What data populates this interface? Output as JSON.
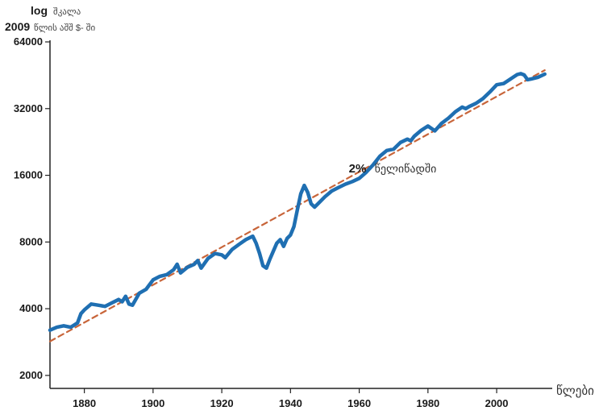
{
  "chart_data": {
    "type": "line",
    "title": "",
    "ylabel_line1_bold": "log",
    "ylabel_line1_text": "შკალა",
    "ylabel_line2_bold": "2009",
    "ylabel_line2_text": "წლის აშშ $- ში",
    "xlabel": "წლები",
    "yscale": "log",
    "xlim": [
      1870,
      2015
    ],
    "ylim": [
      1900,
      64000
    ],
    "yticks": [
      2000,
      4000,
      8000,
      16000,
      32000,
      64000
    ],
    "ytick_labels": [
      "2000",
      "4000",
      "8000",
      "16000",
      "32000",
      "64000"
    ],
    "xticks": [
      1880,
      1900,
      1920,
      1940,
      1960,
      1980,
      2000
    ],
    "xtick_labels": [
      "1880",
      "1900",
      "1920",
      "1940",
      "1960",
      "1980",
      "2000"
    ],
    "grid": false,
    "annotation": {
      "value": "2%",
      "text": "წელიწადში",
      "x": 1964,
      "y": 16500
    },
    "series": [
      {
        "style": "solid",
        "color": "#1f6fb2",
        "x": [
          1870,
          1872,
          1874,
          1876,
          1878,
          1879,
          1880,
          1882,
          1884,
          1886,
          1888,
          1890,
          1891,
          1892,
          1893,
          1894,
          1896,
          1898,
          1900,
          1902,
          1904,
          1906,
          1907,
          1908,
          1910,
          1912,
          1913,
          1914,
          1916,
          1918,
          1920,
          1921,
          1923,
          1925,
          1927,
          1929,
          1930,
          1931,
          1932,
          1933,
          1934,
          1936,
          1937,
          1938,
          1939,
          1940,
          1941,
          1942,
          1943,
          1944,
          1945,
          1946,
          1947,
          1948,
          1950,
          1952,
          1954,
          1956,
          1958,
          1960,
          1962,
          1964,
          1966,
          1968,
          1970,
          1972,
          1974,
          1975,
          1976,
          1978,
          1980,
          1982,
          1984,
          1986,
          1988,
          1990,
          1991,
          1992,
          1994,
          1996,
          1998,
          2000,
          2002,
          2004,
          2006,
          2007,
          2008,
          2009,
          2010,
          2012,
          2014
        ],
        "values": [
          3200,
          3300,
          3350,
          3300,
          3450,
          3800,
          3950,
          4200,
          4150,
          4100,
          4250,
          4400,
          4300,
          4550,
          4200,
          4150,
          4700,
          4900,
          5400,
          5600,
          5700,
          6000,
          6350,
          5800,
          6150,
          6350,
          6600,
          6100,
          6750,
          7100,
          7000,
          6800,
          7400,
          7800,
          8200,
          8500,
          7900,
          7100,
          6250,
          6100,
          6700,
          7900,
          8200,
          7650,
          8300,
          8600,
          9400,
          11200,
          13200,
          14400,
          13400,
          11900,
          11500,
          11900,
          12800,
          13600,
          14100,
          14600,
          15000,
          15500,
          16500,
          17800,
          19500,
          20700,
          21000,
          22500,
          23300,
          22900,
          24000,
          25500,
          26700,
          25400,
          27500,
          29000,
          31000,
          32500,
          32000,
          32700,
          33800,
          35500,
          38000,
          41000,
          41500,
          43500,
          45600,
          46000,
          45400,
          43200,
          43500,
          44300,
          45800
        ]
      },
      {
        "style": "dashed",
        "color": "#c8653a",
        "x": [
          1870,
          2014
        ],
        "values": [
          2850,
          47700
        ]
      }
    ]
  }
}
